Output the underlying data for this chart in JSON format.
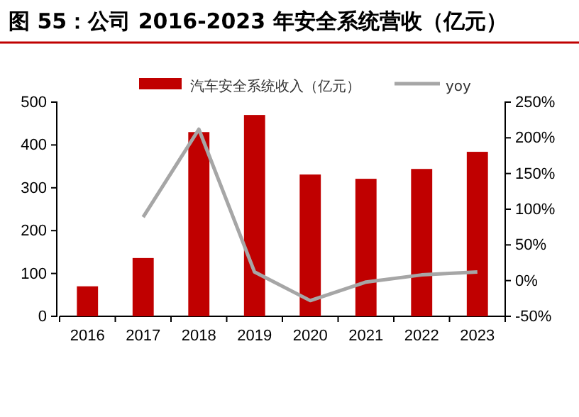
{
  "chart_data": {
    "type": "bar",
    "title": "图 55：公司 2016-2023 年安全系统营收（亿元）",
    "categories": [
      "2016",
      "2017",
      "2018",
      "2019",
      "2020",
      "2021",
      "2022",
      "2023"
    ],
    "series": [
      {
        "name": "汽车安全系统收入（亿元）",
        "color": "#c00000",
        "values": [
          70,
          136,
          430,
          470,
          331,
          321,
          344,
          384
        ]
      },
      {
        "name": "yoy",
        "type": "line",
        "axis": "y2",
        "color": "#a6a6a6",
        "values": [
          null,
          89,
          212,
          12,
          -28,
          -2,
          8,
          12
        ]
      }
    ],
    "ylim": [
      0,
      500
    ],
    "yticks": [
      0,
      100,
      200,
      300,
      400,
      500
    ],
    "y2lim": [
      -50,
      250
    ],
    "y2ticks": [
      {
        "value": -50,
        "label": "-50%"
      },
      {
        "value": 0,
        "label": "0%"
      },
      {
        "value": 50,
        "label": "50%"
      },
      {
        "value": 100,
        "label": "100%"
      },
      {
        "value": 150,
        "label": "150%"
      },
      {
        "value": 200,
        "label": "200%"
      },
      {
        "value": 250,
        "label": "250%"
      }
    ],
    "legend": "top",
    "grid": false,
    "marker": "none"
  }
}
